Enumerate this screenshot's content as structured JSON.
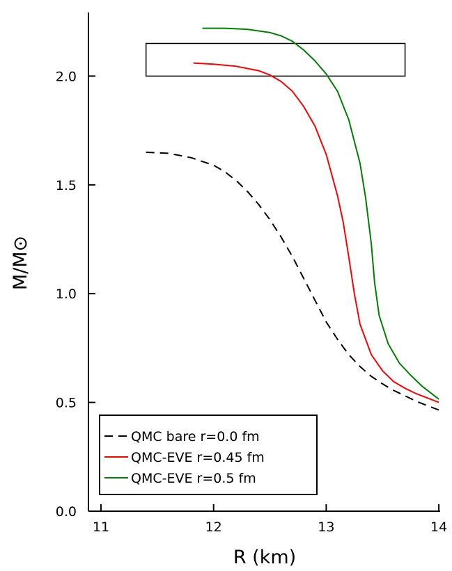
{
  "chart_data": {
    "type": "line",
    "title": "",
    "xlabel": "R (km)",
    "ylabel": "M/M⊙",
    "xlim": [
      10.9,
      14.0
    ],
    "ylim": [
      0.0,
      2.3
    ],
    "xticks": [
      11,
      12,
      13,
      14
    ],
    "xtick_labels": [
      "11",
      "12",
      "13",
      "14"
    ],
    "yticks": [
      0.0,
      0.5,
      1.0,
      1.5,
      2.0
    ],
    "ytick_labels": [
      "0.0",
      "0.5",
      "1.0",
      "1.5",
      "2.0"
    ],
    "grid": false,
    "legend_position": "bottom-left",
    "series": [
      {
        "name": "QMC bare r=0.0 fm",
        "color": "#000000",
        "dash": "dashed",
        "points": [
          [
            11.4,
            1.65
          ],
          [
            11.6,
            1.645
          ],
          [
            11.8,
            1.625
          ],
          [
            12.0,
            1.59
          ],
          [
            12.1,
            1.56
          ],
          [
            12.2,
            1.52
          ],
          [
            12.3,
            1.47
          ],
          [
            12.4,
            1.41
          ],
          [
            12.5,
            1.34
          ],
          [
            12.6,
            1.26
          ],
          [
            12.7,
            1.17
          ],
          [
            12.8,
            1.07
          ],
          [
            12.9,
            0.97
          ],
          [
            13.0,
            0.87
          ],
          [
            13.1,
            0.79
          ],
          [
            13.2,
            0.72
          ],
          [
            13.3,
            0.665
          ],
          [
            13.4,
            0.62
          ],
          [
            13.5,
            0.585
          ],
          [
            13.6,
            0.555
          ],
          [
            13.7,
            0.53
          ],
          [
            13.8,
            0.505
          ],
          [
            13.9,
            0.485
          ],
          [
            14.0,
            0.465
          ]
        ]
      },
      {
        "name": "QMC-EVE r=0.45 fm",
        "color": "#ff0000",
        "dash": "solid",
        "points": [
          [
            11.82,
            2.06
          ],
          [
            12.0,
            2.055
          ],
          [
            12.2,
            2.045
          ],
          [
            12.4,
            2.025
          ],
          [
            12.5,
            2.005
          ],
          [
            12.6,
            1.975
          ],
          [
            12.7,
            1.93
          ],
          [
            12.8,
            1.86
          ],
          [
            12.9,
            1.77
          ],
          [
            13.0,
            1.64
          ],
          [
            13.1,
            1.45
          ],
          [
            13.15,
            1.33
          ],
          [
            13.2,
            1.17
          ],
          [
            13.25,
            1.0
          ],
          [
            13.3,
            0.86
          ],
          [
            13.4,
            0.72
          ],
          [
            13.5,
            0.645
          ],
          [
            13.6,
            0.595
          ],
          [
            13.7,
            0.565
          ],
          [
            13.8,
            0.54
          ],
          [
            13.9,
            0.52
          ],
          [
            14.0,
            0.5
          ]
        ]
      },
      {
        "name": "QMC-EVE r=0.5 fm",
        "color": "#008000",
        "dash": "solid",
        "points": [
          [
            11.9,
            2.22
          ],
          [
            12.1,
            2.22
          ],
          [
            12.3,
            2.215
          ],
          [
            12.5,
            2.2
          ],
          [
            12.6,
            2.185
          ],
          [
            12.7,
            2.16
          ],
          [
            12.8,
            2.12
          ],
          [
            12.9,
            2.07
          ],
          [
            13.0,
            2.01
          ],
          [
            13.1,
            1.93
          ],
          [
            13.2,
            1.8
          ],
          [
            13.3,
            1.6
          ],
          [
            13.35,
            1.44
          ],
          [
            13.4,
            1.23
          ],
          [
            13.43,
            1.05
          ],
          [
            13.47,
            0.9
          ],
          [
            13.55,
            0.77
          ],
          [
            13.65,
            0.68
          ],
          [
            13.75,
            0.625
          ],
          [
            13.85,
            0.575
          ],
          [
            13.95,
            0.535
          ],
          [
            14.0,
            0.515
          ]
        ]
      }
    ],
    "annotations": [
      {
        "type": "rectangle",
        "x0": 11.4,
        "x1": 13.7,
        "y0": 2.0,
        "y1": 2.15,
        "stroke": "#000000"
      }
    ]
  }
}
